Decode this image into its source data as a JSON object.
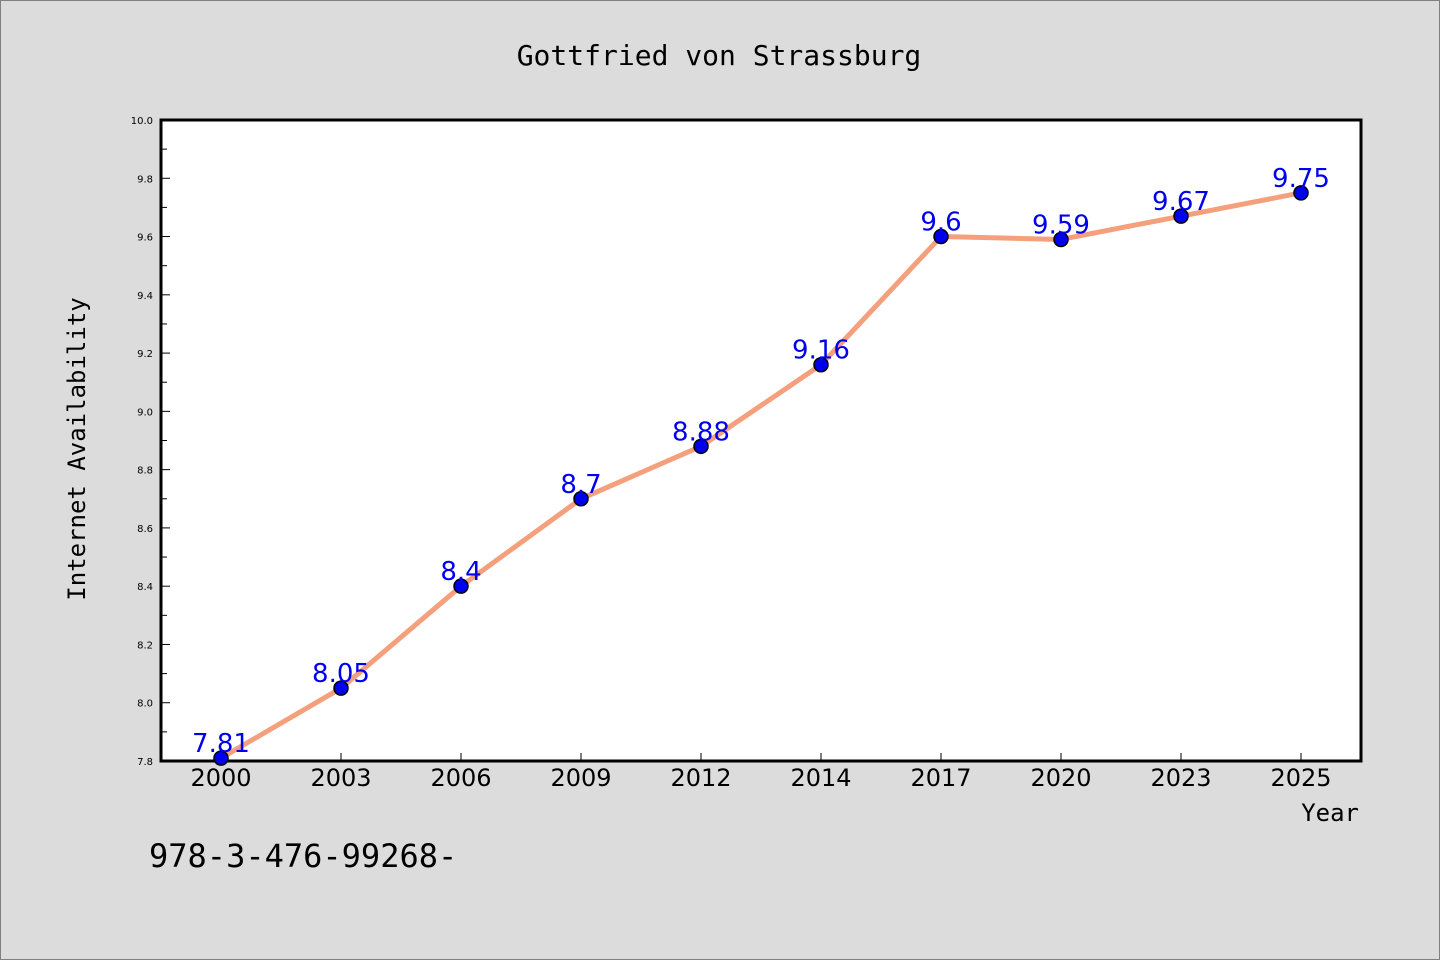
{
  "chart_data": {
    "type": "line",
    "title": "Gottfried von Strassburg",
    "xlabel": "Year",
    "ylabel": "Internet Availability",
    "categories": [
      "2000",
      "2003",
      "2006",
      "2009",
      "2012",
      "2014",
      "2017",
      "2020",
      "2023",
      "2025"
    ],
    "series": [
      {
        "values": [
          7.81,
          8.05,
          8.4,
          8.7,
          8.88,
          9.16,
          9.6,
          9.59,
          9.67,
          9.75
        ]
      }
    ],
    "data_labels": [
      "7.81",
      "8.05",
      "8.4",
      "8.7",
      "8.88",
      "9.16",
      "9.6",
      "9.59",
      "9.67",
      "9.75"
    ],
    "ylim": [
      7.8,
      10.0
    ],
    "y_ticks": [
      "7.8",
      "8.0",
      "8.2",
      "8.4",
      "8.6",
      "8.8",
      "9.0",
      "9.2",
      "9.4",
      "9.6",
      "9.8",
      "10.0"
    ],
    "grid": false,
    "legend": "none",
    "colors": {
      "line": "#f4a07c",
      "marker": "#0000ee",
      "marker_edge": "#000000",
      "data_label": "#0000ee",
      "plot_background": "#ffffff",
      "page_background": "#dcdcdc"
    }
  },
  "footnote": "978-3-476-99268-"
}
